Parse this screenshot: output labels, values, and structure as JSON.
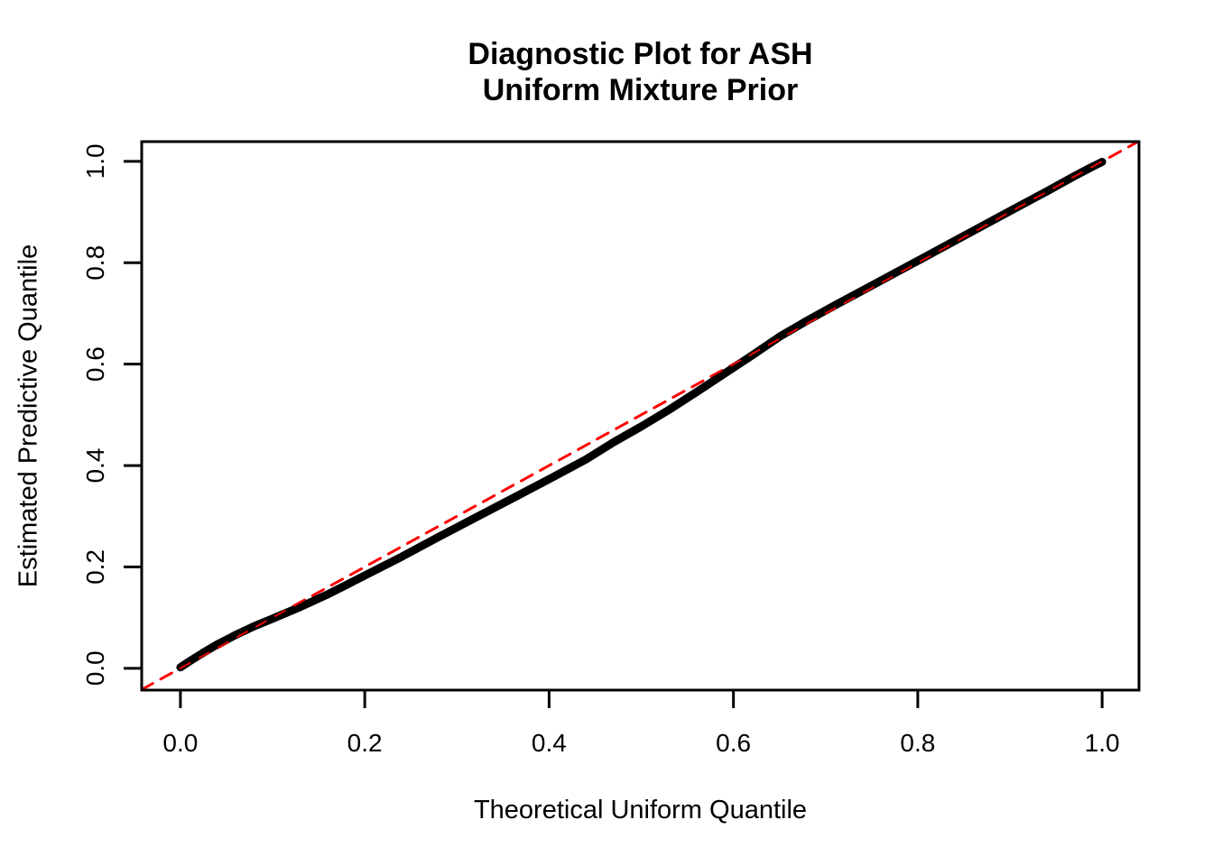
{
  "title": {
    "line1": "Diagnostic Plot for ASH",
    "line2": "Uniform Mixture Prior"
  },
  "axes": {
    "x_label": "Theoretical Uniform Quantile",
    "y_label": "Estimated Predictive Quantile"
  },
  "colors": {
    "curve": "#000000",
    "reference_line": "#FF0000",
    "axis": "#000000",
    "background": "#FFFFFF"
  },
  "chart_data": {
    "type": "line",
    "title": "Diagnostic Plot for ASH / Uniform Mixture Prior",
    "xlabel": "Theoretical Uniform Quantile",
    "ylabel": "Estimated Predictive Quantile",
    "xlim": [
      -0.042,
      1.04
    ],
    "ylim": [
      -0.043,
      1.039
    ],
    "grid": false,
    "legend": "none",
    "x_ticks": [
      0.0,
      0.2,
      0.4,
      0.6,
      0.8,
      1.0
    ],
    "x_tick_labels": [
      "0.0",
      "0.2",
      "0.4",
      "0.6",
      "0.8",
      "1.0"
    ],
    "y_ticks": [
      0.0,
      0.2,
      0.4,
      0.6,
      0.8,
      1.0
    ],
    "y_tick_labels": [
      "0.0",
      "0.2",
      "0.4",
      "0.6",
      "0.8",
      "1.0"
    ],
    "series": [
      {
        "name": "estimated-predictive-quantiles",
        "type": "line",
        "color": "#000000",
        "line_width": 9,
        "line_style": "solid",
        "x": [
          0.0,
          0.01,
          0.025,
          0.04,
          0.06,
          0.08,
          0.1,
          0.13,
          0.16,
          0.2,
          0.24,
          0.28,
          0.32,
          0.36,
          0.4,
          0.44,
          0.47,
          0.5,
          0.53,
          0.56,
          0.59,
          0.62,
          0.65,
          0.68,
          0.71,
          0.75,
          0.8,
          0.85,
          0.9,
          0.94,
          0.97,
          0.99,
          1.0
        ],
        "y": [
          0.002,
          0.014,
          0.031,
          0.047,
          0.066,
          0.083,
          0.098,
          0.121,
          0.146,
          0.183,
          0.22,
          0.259,
          0.297,
          0.335,
          0.373,
          0.412,
          0.446,
          0.477,
          0.51,
          0.545,
          0.581,
          0.617,
          0.654,
          0.686,
          0.716,
          0.755,
          0.804,
          0.853,
          0.902,
          0.941,
          0.971,
          0.99,
          0.999
        ]
      },
      {
        "name": "identity-reference-line",
        "type": "line",
        "color": "#FF0000",
        "line_width": 3,
        "line_style": "dashed",
        "x": [
          -0.042,
          1.039
        ],
        "y": [
          -0.042,
          1.039
        ]
      }
    ]
  }
}
